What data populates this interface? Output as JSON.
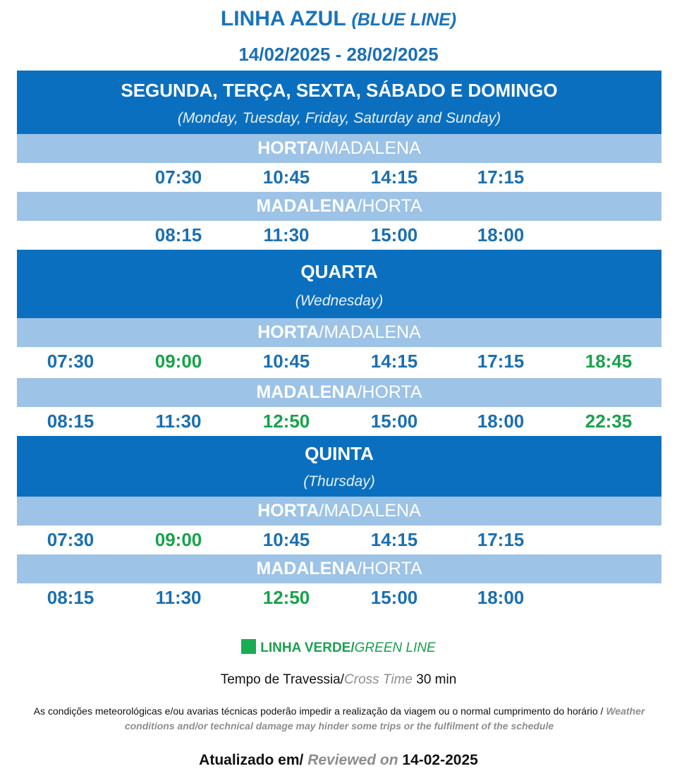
{
  "header": {
    "title_pt": "LINHA AZUL",
    "title_en": "(BLUE LINE)",
    "period": "14/02/2025 - 28/02/2025"
  },
  "colors": {
    "day_band": "#0b6fbf",
    "route_band": "#9dc3e6",
    "blue_time": "#1a6fb2",
    "green_line": "#18a24a"
  },
  "sections": [
    {
      "day_pt": "SEGUNDA, TERÇA, SEXTA, SÁBADO E DOMINGO",
      "day_en": "(Monday, Tuesday, Friday, Saturday and Sunday)",
      "routes": [
        {
          "from": "HORTA",
          "sep": "/",
          "to": "MADALENA",
          "times": [
            {
              "t": "07:30",
              "line": "blue",
              "col": 2
            },
            {
              "t": "10:45",
              "line": "blue",
              "col": 3
            },
            {
              "t": "14:15",
              "line": "blue",
              "col": 4
            },
            {
              "t": "17:15",
              "line": "blue",
              "col": 5
            }
          ]
        },
        {
          "from": "MADALENA",
          "sep": "/",
          "to": "HORTA",
          "times": [
            {
              "t": "08:15",
              "line": "blue",
              "col": 2
            },
            {
              "t": "11:30",
              "line": "blue",
              "col": 3
            },
            {
              "t": "15:00",
              "line": "blue",
              "col": 4
            },
            {
              "t": "18:00",
              "line": "blue",
              "col": 5
            }
          ]
        }
      ]
    },
    {
      "day_pt": "QUARTA",
      "day_en": "(Wednesday)",
      "routes": [
        {
          "from": "HORTA",
          "sep": "/",
          "to": "MADALENA",
          "times": [
            {
              "t": "07:30",
              "line": "blue",
              "col": 1
            },
            {
              "t": "09:00",
              "line": "green",
              "col": 2
            },
            {
              "t": "10:45",
              "line": "blue",
              "col": 3
            },
            {
              "t": "14:15",
              "line": "blue",
              "col": 4
            },
            {
              "t": "17:15",
              "line": "blue",
              "col": 5
            },
            {
              "t": "18:45",
              "line": "green",
              "col": 6
            }
          ]
        },
        {
          "from": "MADALENA",
          "sep": "/",
          "to": "HORTA",
          "times": [
            {
              "t": "08:15",
              "line": "blue",
              "col": 1
            },
            {
              "t": "11:30",
              "line": "blue",
              "col": 2
            },
            {
              "t": "12:50",
              "line": "green",
              "col": 3
            },
            {
              "t": "15:00",
              "line": "blue",
              "col": 4
            },
            {
              "t": "18:00",
              "line": "blue",
              "col": 5
            },
            {
              "t": "22:35",
              "line": "green",
              "col": 6
            }
          ]
        }
      ]
    },
    {
      "day_pt": "QUINTA",
      "day_en": "(Thursday)",
      "routes": [
        {
          "from": "HORTA",
          "sep": "/",
          "to": "MADALENA",
          "times": [
            {
              "t": "07:30",
              "line": "blue",
              "col": 1
            },
            {
              "t": "09:00",
              "line": "green",
              "col": 2
            },
            {
              "t": "10:45",
              "line": "blue",
              "col": 3
            },
            {
              "t": "14:15",
              "line": "blue",
              "col": 4
            },
            {
              "t": "17:15",
              "line": "blue",
              "col": 5
            }
          ]
        },
        {
          "from": "MADALENA",
          "sep": "/",
          "to": "HORTA",
          "times": [
            {
              "t": "08:15",
              "line": "blue",
              "col": 1
            },
            {
              "t": "11:30",
              "line": "blue",
              "col": 2
            },
            {
              "t": "12:50",
              "line": "green",
              "col": 3
            },
            {
              "t": "15:00",
              "line": "blue",
              "col": 4
            },
            {
              "t": "18:00",
              "line": "blue",
              "col": 5
            }
          ]
        }
      ]
    }
  ],
  "legend": {
    "icon": "green-square",
    "label_pt": "LINHA VERDE/",
    "label_en": "GREEN LINE"
  },
  "cross_time": {
    "label_pt": "Tempo de Travessia/",
    "label_en": "Cross Time",
    "value": " 30 min"
  },
  "disclaimer": {
    "text_pt": "As condições meteorológicas e/ou avarias técnicas poderão impedir a realização da viagem ou o normal cumprimento do horário / ",
    "text_en": "Weather conditions and/or technical damage may hinder some trips or the fulfilment of the schedule"
  },
  "updated": {
    "label_pt": "Atualizado em/ ",
    "label_en": "Reviewed on",
    "date": " 14-02-2025"
  }
}
